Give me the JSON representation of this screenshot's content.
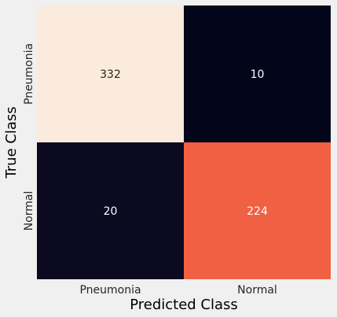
{
  "chart_data": {
    "type": "heatmap",
    "title": "",
    "xlabel": "Predicted Class",
    "ylabel": "True Class",
    "x_categories": [
      "Pneumonia",
      "Normal"
    ],
    "y_categories": [
      "Pneumonia",
      "Normal"
    ],
    "values": [
      [
        332,
        10
      ],
      [
        20,
        224
      ]
    ],
    "value_range": [
      10,
      332
    ],
    "colormap": "rocket",
    "cell_colors": [
      [
        "#faebdd",
        "#03051a"
      ],
      [
        "#0b0a20",
        "#f06043"
      ]
    ],
    "cell_text_colors": [
      [
        "#262626",
        "#ffffff"
      ],
      [
        "#ffffff",
        "#ffffff"
      ]
    ],
    "colorbar": false,
    "grid": false
  }
}
